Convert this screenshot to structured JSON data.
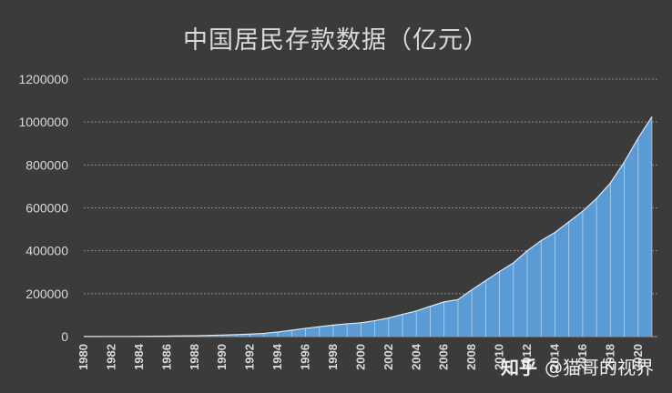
{
  "chart_data": {
    "type": "area",
    "title": "中国居民存款数据（亿元）",
    "xlabel": "",
    "ylabel": "",
    "x": [
      1980,
      1981,
      1982,
      1983,
      1984,
      1985,
      1986,
      1987,
      1988,
      1989,
      1990,
      1991,
      1992,
      1993,
      1994,
      1995,
      1996,
      1997,
      1998,
      1999,
      2000,
      2001,
      2002,
      2003,
      2004,
      2005,
      2006,
      2007,
      2008,
      2009,
      2010,
      2011,
      2012,
      2013,
      2014,
      2015,
      2016,
      2017,
      2018,
      2019,
      2020,
      2021
    ],
    "values": [
      400,
      500,
      700,
      900,
      1200,
      1600,
      2200,
      3100,
      3800,
      5200,
      7100,
      9200,
      11800,
      15200,
      21500,
      29700,
      38500,
      46300,
      53400,
      59600,
      64300,
      73800,
      86900,
      103600,
      119600,
      141000,
      161600,
      172500,
      217900,
      260800,
      303300,
      343600,
      399600,
      447600,
      485300,
      534900,
      584200,
      643800,
      716000,
      813000,
      925000,
      1025000
    ],
    "series": [
      {
        "name": "居民存款",
        "color": "#5b9bd5"
      }
    ],
    "ylim": [
      0,
      1200000
    ],
    "yticks": [
      "0",
      "200000",
      "400000",
      "600000",
      "800000",
      "1000000",
      "1200000"
    ],
    "xticks": [
      "1980",
      "1982",
      "1984",
      "1986",
      "1988",
      "1990",
      "1992",
      "1994",
      "1996",
      "1998",
      "2000",
      "2002",
      "2004",
      "2006",
      "2008",
      "2010",
      "2012",
      "2014",
      "2016",
      "2018",
      "2020"
    ],
    "grid": true,
    "legend": "none",
    "colors": {
      "background": "#3b3b3b",
      "area": "#5b9bd5",
      "line": "#dbe9f7",
      "grid": "#8c8c8c",
      "text": "#d9d9d9"
    }
  },
  "watermark": {
    "site": "知乎",
    "author": "@猫哥的视界"
  }
}
